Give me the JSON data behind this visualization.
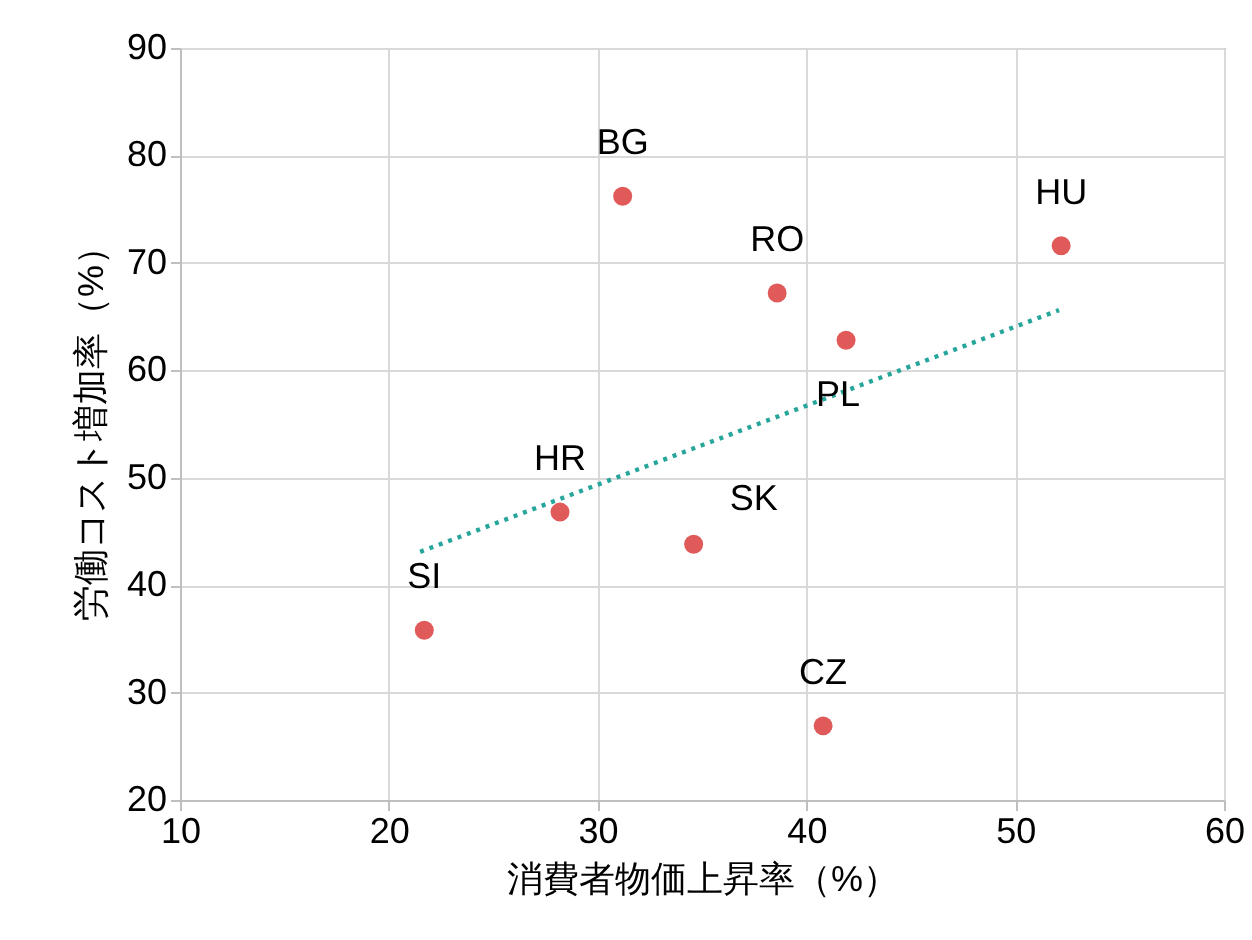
{
  "chart_data": {
    "type": "scatter",
    "xlabel": "消費者物価上昇率（%）",
    "ylabel": "労働コスト増加率（%）",
    "xlim": [
      10,
      60
    ],
    "xticks": [
      10,
      20,
      30,
      40,
      50,
      60
    ],
    "ylim": [
      20,
      90
    ],
    "yticks": [
      20,
      30,
      40,
      50,
      60,
      70,
      80,
      90
    ],
    "grid": true,
    "series": [
      {
        "marker": "circle",
        "color": "#e05a5a",
        "x": [
          31.2,
          52.2,
          38.6,
          41.9,
          28.2,
          34.6,
          21.7,
          40.8
        ],
        "values": [
          76.2,
          71.6,
          67.2,
          62.8,
          46.8,
          43.8,
          35.8,
          26.9
        ]
      },
      {
        "type": "line",
        "color": "#26a69a",
        "line_style": "dotted",
        "x": [
          21.5,
          52.1
        ],
        "values": [
          43.1,
          65.6
        ]
      }
    ],
    "annotations": [
      {
        "text": "BG",
        "x": 31.2,
        "y": 76.2
      },
      {
        "text": "HU",
        "x": 52.2,
        "y": 71.6
      },
      {
        "text": "RO",
        "x": 38.6,
        "y": 67.2
      },
      {
        "text": "PL",
        "x": 41.9,
        "y": 62.8
      },
      {
        "text": "HR",
        "x": 28.2,
        "y": 46.8
      },
      {
        "text": "SK",
        "x": 34.6,
        "y": 43.8
      },
      {
        "text": "SI",
        "x": 21.7,
        "y": 35.8
      },
      {
        "text": "CZ",
        "x": 40.8,
        "y": 26.9
      }
    ]
  }
}
